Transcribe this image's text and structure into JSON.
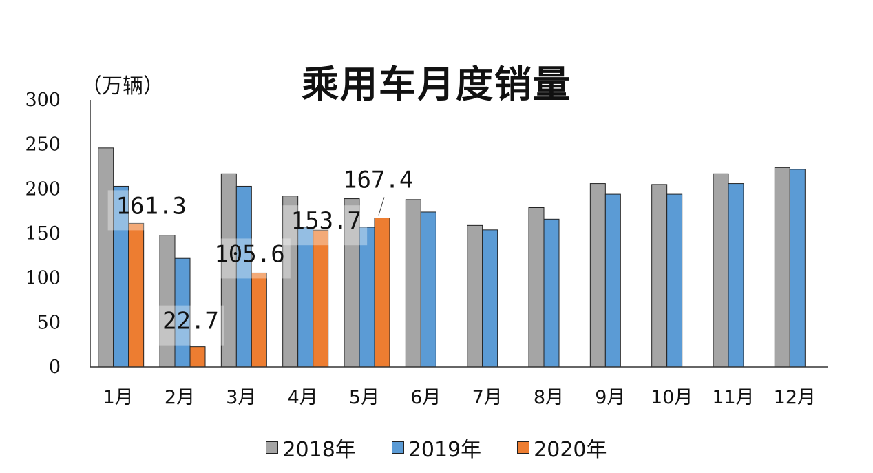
{
  "chart_data": {
    "type": "bar",
    "title": "乘用车月度销量",
    "ylabel": "（万辆）",
    "xlabel": "",
    "ylim": [
      0,
      300
    ],
    "yticks": [
      0,
      50,
      100,
      150,
      200,
      250,
      300
    ],
    "categories": [
      "1月",
      "2月",
      "3月",
      "4月",
      "5月",
      "6月",
      "7月",
      "8月",
      "9月",
      "10月",
      "11月",
      "12月"
    ],
    "series": [
      {
        "name": "2018年",
        "color": "#a5a5a5",
        "values": [
          246,
          148,
          217,
          192,
          189,
          188,
          159,
          179,
          206,
          205,
          217,
          224
        ]
      },
      {
        "name": "2019年",
        "color": "#5b9bd5",
        "values": [
          203,
          122,
          203,
          157,
          157,
          174,
          154,
          166,
          194,
          194,
          206,
          222
        ]
      },
      {
        "name": "2020年",
        "color": "#ed7d31",
        "values": [
          161.3,
          22.7,
          105.6,
          153.7,
          167.4,
          null,
          null,
          null,
          null,
          null,
          null,
          null
        ]
      }
    ],
    "data_labels": [
      {
        "series": 2,
        "index": 0,
        "text": "161.3"
      },
      {
        "series": 2,
        "index": 1,
        "text": "22.7"
      },
      {
        "series": 2,
        "index": 2,
        "text": "105.6"
      },
      {
        "series": 2,
        "index": 3,
        "text": "153.7"
      },
      {
        "series": 2,
        "index": 4,
        "text": "167.4"
      }
    ],
    "legend": "bottom",
    "grid": false
  }
}
